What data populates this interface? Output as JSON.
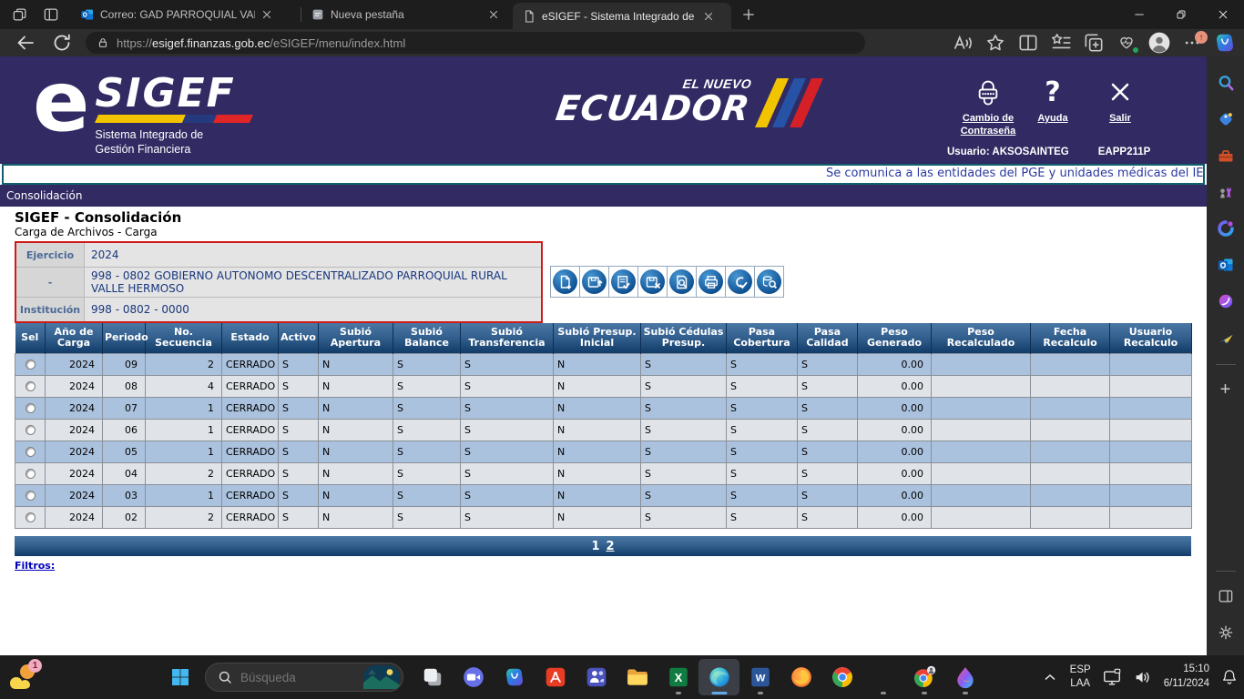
{
  "browser": {
    "tabs": [
      {
        "title": "Correo: GAD PARROQUIAL VALLE"
      },
      {
        "title": "Nueva pestaña"
      },
      {
        "title": "eSIGEF - Sistema Integrado de G",
        "active": true
      }
    ],
    "url": {
      "scheme": "https://",
      "host": "esigef.finanzas.gob.ec",
      "path": "/eSIGEF/menu/index.html"
    }
  },
  "header": {
    "logo": {
      "e": "e",
      "name": "SIGEF",
      "tagline1": "Sistema Integrado de",
      "tagline2": "Gestión Financiera"
    },
    "brand": {
      "top": "EL NUEVO",
      "name": "ECUADOR"
    },
    "actions": [
      {
        "label": "Cambio de Contraseña"
      },
      {
        "label": "Ayuda"
      },
      {
        "label": "Salir"
      }
    ],
    "user": "Usuario: AKSOSAINTEG",
    "terminal": "EAPP211P"
  },
  "marquee": {
    "text": "Se comunica a las entidades del PGE y unidades médicas del IESS qu"
  },
  "menubar": {
    "item": "Consolidación"
  },
  "page": {
    "title": "SIGEF - Consolidación",
    "subtitle": "Carga de Archivos - Carga",
    "form": {
      "rows": [
        {
          "label": "Ejercicio",
          "value": "2024"
        },
        {
          "label": "-",
          "value": "998 - 0802 GOBIERNO AUTONOMO DESCENTRALIZADO PARROQUIAL RURAL VALLE HERMOSO"
        },
        {
          "label": "Institución",
          "value": "998 - 0802 - 0000"
        }
      ]
    },
    "toolbar": [
      "new-record",
      "upload",
      "validate",
      "delete",
      "preview",
      "print",
      "confirm",
      "recalculate"
    ],
    "table": {
      "columns": [
        "Sel",
        "Año de Carga",
        "Periodo",
        "No. Secuencia",
        "Estado",
        "Activo",
        "Subió Apertura",
        "Subió Balance",
        "Subió Transferencia",
        "Subió Presup. Inicial",
        "Subió Cédulas Presup.",
        "Pasa Cobertura",
        "Pasa Calidad",
        "Peso Generado",
        "Peso Recalculado",
        "Fecha Recalculo",
        "Usuario Recalculo"
      ],
      "rows": [
        {
          "anio": "2024",
          "periodo": "09",
          "secuencia": "2",
          "estado": "CERRADO",
          "activo": "S",
          "subio_apertura": "N",
          "subio_balance": "S",
          "subio_transferencia": "S",
          "subio_presup_inicial": "N",
          "subio_cedulas_presup": "S",
          "pasa_cobertura": "S",
          "pasa_calidad": "S",
          "peso_generado": "0.00",
          "peso_recalculado": "",
          "fecha_recalculo": "",
          "usuario_recalculo": ""
        },
        {
          "anio": "2024",
          "periodo": "08",
          "secuencia": "4",
          "estado": "CERRADO",
          "activo": "S",
          "subio_apertura": "N",
          "subio_balance": "S",
          "subio_transferencia": "S",
          "subio_presup_inicial": "N",
          "subio_cedulas_presup": "S",
          "pasa_cobertura": "S",
          "pasa_calidad": "S",
          "peso_generado": "0.00",
          "peso_recalculado": "",
          "fecha_recalculo": "",
          "usuario_recalculo": ""
        },
        {
          "anio": "2024",
          "periodo": "07",
          "secuencia": "1",
          "estado": "CERRADO",
          "activo": "S",
          "subio_apertura": "N",
          "subio_balance": "S",
          "subio_transferencia": "S",
          "subio_presup_inicial": "N",
          "subio_cedulas_presup": "S",
          "pasa_cobertura": "S",
          "pasa_calidad": "S",
          "peso_generado": "0.00",
          "peso_recalculado": "",
          "fecha_recalculo": "",
          "usuario_recalculo": ""
        },
        {
          "anio": "2024",
          "periodo": "06",
          "secuencia": "1",
          "estado": "CERRADO",
          "activo": "S",
          "subio_apertura": "N",
          "subio_balance": "S",
          "subio_transferencia": "S",
          "subio_presup_inicial": "N",
          "subio_cedulas_presup": "S",
          "pasa_cobertura": "S",
          "pasa_calidad": "S",
          "peso_generado": "0.00",
          "peso_recalculado": "",
          "fecha_recalculo": "",
          "usuario_recalculo": ""
        },
        {
          "anio": "2024",
          "periodo": "05",
          "secuencia": "1",
          "estado": "CERRADO",
          "activo": "S",
          "subio_apertura": "N",
          "subio_balance": "S",
          "subio_transferencia": "S",
          "subio_presup_inicial": "N",
          "subio_cedulas_presup": "S",
          "pasa_cobertura": "S",
          "pasa_calidad": "S",
          "peso_generado": "0.00",
          "peso_recalculado": "",
          "fecha_recalculo": "",
          "usuario_recalculo": ""
        },
        {
          "anio": "2024",
          "periodo": "04",
          "secuencia": "2",
          "estado": "CERRADO",
          "activo": "S",
          "subio_apertura": "N",
          "subio_balance": "S",
          "subio_transferencia": "S",
          "subio_presup_inicial": "N",
          "subio_cedulas_presup": "S",
          "pasa_cobertura": "S",
          "pasa_calidad": "S",
          "peso_generado": "0.00",
          "peso_recalculado": "",
          "fecha_recalculo": "",
          "usuario_recalculo": ""
        },
        {
          "anio": "2024",
          "periodo": "03",
          "secuencia": "1",
          "estado": "CERRADO",
          "activo": "S",
          "subio_apertura": "N",
          "subio_balance": "S",
          "subio_transferencia": "S",
          "subio_presup_inicial": "N",
          "subio_cedulas_presup": "S",
          "pasa_cobertura": "S",
          "pasa_calidad": "S",
          "peso_generado": "0.00",
          "peso_recalculado": "",
          "fecha_recalculo": "",
          "usuario_recalculo": ""
        },
        {
          "anio": "2024",
          "periodo": "02",
          "secuencia": "2",
          "estado": "CERRADO",
          "activo": "S",
          "subio_apertura": "N",
          "subio_balance": "S",
          "subio_transferencia": "S",
          "subio_presup_inicial": "N",
          "subio_cedulas_presup": "S",
          "pasa_cobertura": "S",
          "pasa_calidad": "S",
          "peso_generado": "0.00",
          "peso_recalculado": "",
          "fecha_recalculo": "",
          "usuario_recalculo": ""
        }
      ],
      "pagination": {
        "pages": [
          {
            "label": "1",
            "current": true
          },
          {
            "label": "2",
            "current": false
          }
        ]
      }
    },
    "filters_label": "Filtros:"
  },
  "sidebar": {
    "items": [
      {
        "name": "search"
      },
      {
        "name": "shopping"
      },
      {
        "name": "toolbox"
      },
      {
        "name": "games"
      },
      {
        "name": "m365"
      },
      {
        "name": "outlook"
      },
      {
        "name": "designer"
      },
      {
        "name": "send-plane"
      }
    ]
  },
  "taskbar": {
    "weather_badge": "1",
    "search_placeholder": "Búsqueda",
    "apps": [
      {
        "name": "task-view"
      },
      {
        "name": "chat"
      },
      {
        "name": "copilot"
      },
      {
        "name": "acrobat"
      },
      {
        "name": "teams"
      },
      {
        "name": "file-explorer"
      },
      {
        "name": "excel",
        "running": true
      },
      {
        "name": "edge",
        "active": true
      },
      {
        "name": "word",
        "running": true
      },
      {
        "name": "firefox"
      },
      {
        "name": "chrome"
      },
      {
        "name": "spotify",
        "running": true
      },
      {
        "name": "chrome-work",
        "running": true
      },
      {
        "name": "paint",
        "running": true
      }
    ],
    "tray": {
      "language": "ESP",
      "layout": "LAA",
      "time": "15:10",
      "date": "6/11/2024"
    }
  },
  "colors": {
    "header_navy": "#312a63",
    "form_border": "#cf1a1a",
    "row_odd": "#abc2de",
    "row_even": "#e0e4e8",
    "table_header_top": "#4a77a4",
    "table_header_bottom": "#123c69",
    "link_blue": "#0000bb",
    "marquee_text": "#2b3a9e",
    "accent_red": "#e02626",
    "accent_yellow": "#f2c400"
  }
}
